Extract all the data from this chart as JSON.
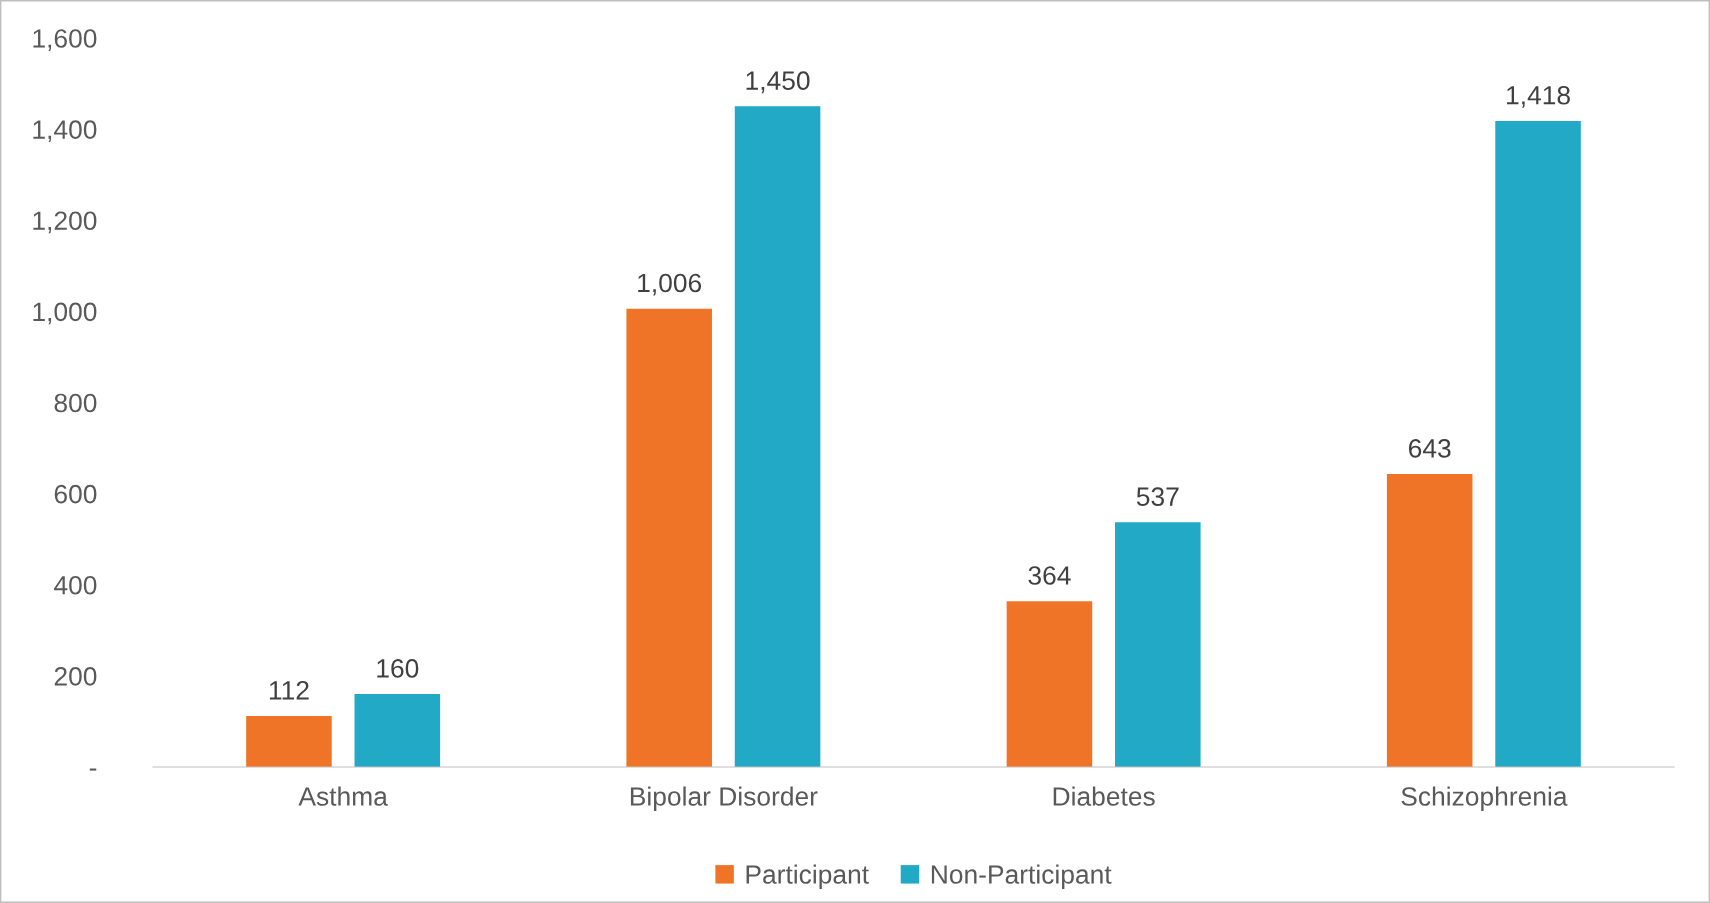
{
  "chart_data": {
    "type": "bar",
    "categories": [
      "Asthma",
      "Bipolar Disorder",
      "Diabetes",
      "Schizophrenia"
    ],
    "series": [
      {
        "name": "Participant",
        "color": "#f07427",
        "values": [
          112,
          1006,
          364,
          643
        ]
      },
      {
        "name": "Non-Participant",
        "color": "#21a9c6",
        "values": [
          160,
          1450,
          537,
          1418
        ]
      }
    ],
    "ylim": [
      0,
      1600
    ],
    "yticks": [
      {
        "value": 0,
        "label": "-"
      },
      200,
      400,
      600,
      800,
      {
        "value": 1000,
        "label": "1,000"
      },
      {
        "value": 1200,
        "label": "1,200"
      },
      {
        "value": 1400,
        "label": "1,400"
      },
      {
        "value": 1600,
        "label": "1,600"
      }
    ],
    "value_labels": [
      [
        "112",
        "1,006",
        "364",
        "643"
      ],
      [
        "160",
        "1,450",
        "537",
        "1,418"
      ]
    ],
    "grid": false,
    "legend": "bottom"
  }
}
